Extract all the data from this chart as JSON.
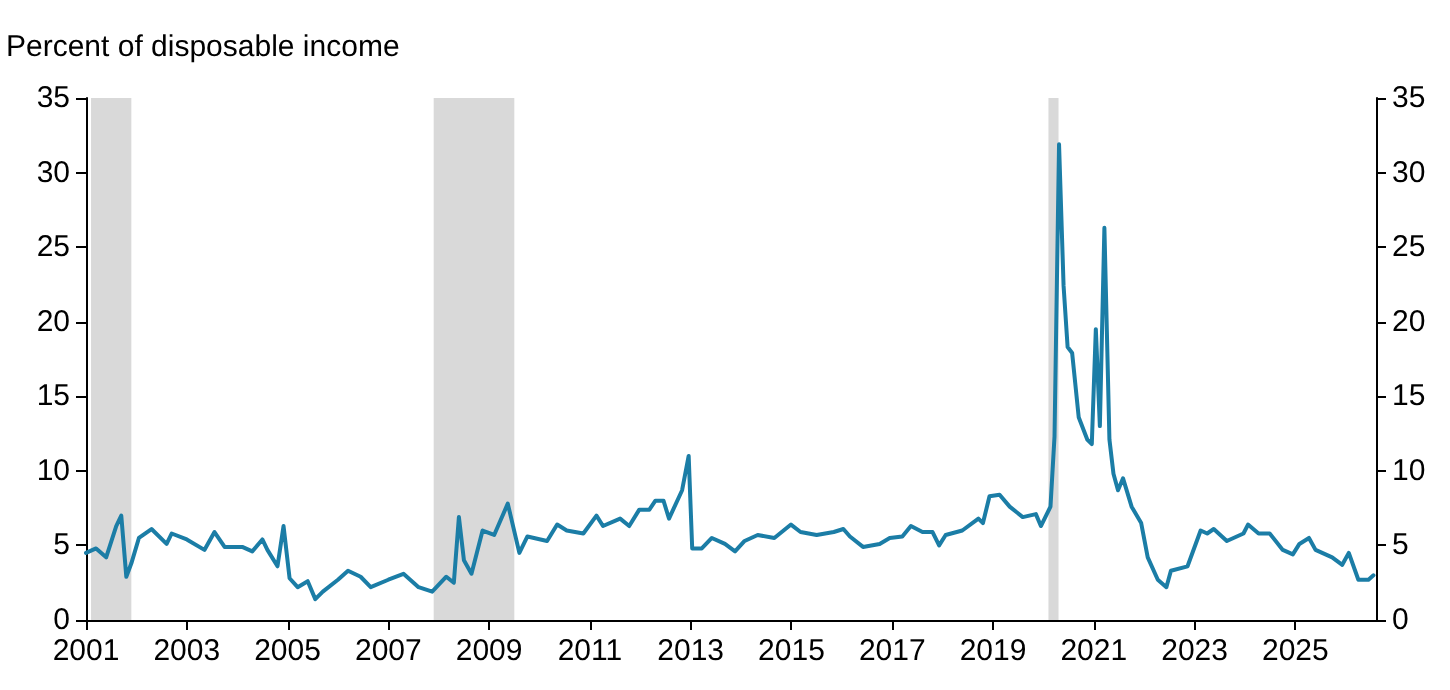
{
  "chart_data": {
    "type": "line",
    "ylabel": "Percent of disposable income",
    "xlim": [
      2001,
      2026.6
    ],
    "xticks": [
      2001,
      2003,
      2005,
      2007,
      2009,
      2011,
      2013,
      2015,
      2017,
      2019,
      2021,
      2023,
      2025
    ],
    "ylim": [
      0,
      35
    ],
    "yticks": [
      0,
      5,
      10,
      15,
      20,
      25,
      30,
      35
    ],
    "y2lim": [
      0,
      35
    ],
    "y2ticks": [
      0,
      5,
      10,
      15,
      20,
      25,
      30,
      35
    ],
    "grid": false,
    "marker": "none",
    "line_style": "solid",
    "bands": [
      {
        "axis": "x",
        "from": 2001.1,
        "to": 2001.9,
        "color": "#d9d9d9"
      },
      {
        "axis": "x",
        "from": 2007.9,
        "to": 2009.5,
        "color": "#d9d9d9"
      },
      {
        "axis": "x",
        "from": 2020.1,
        "to": 2020.3,
        "color": "#d9d9d9"
      }
    ],
    "series": [
      {
        "color": "#1b7da6",
        "x": [
          2001.0,
          2001.2,
          2001.4,
          2001.6,
          2001.7,
          2001.8,
          2001.9,
          2002.05,
          2002.3,
          2002.6,
          2002.7,
          2003.0,
          2003.35,
          2003.55,
          2003.75,
          2004.1,
          2004.3,
          2004.5,
          2004.6,
          2004.8,
          2004.92,
          2005.04,
          2005.2,
          2005.4,
          2005.55,
          2005.7,
          2006.0,
          2006.2,
          2006.45,
          2006.65,
          2007.0,
          2007.3,
          2007.6,
          2007.87,
          2008.15,
          2008.3,
          2008.4,
          2008.5,
          2008.65,
          2008.87,
          2009.1,
          2009.37,
          2009.6,
          2009.76,
          2010.15,
          2010.35,
          2010.54,
          2010.87,
          2011.13,
          2011.26,
          2011.6,
          2011.78,
          2011.98,
          2012.18,
          2012.3,
          2012.46,
          2012.57,
          2012.83,
          2012.96,
          2013.03,
          2013.22,
          2013.42,
          2013.68,
          2013.88,
          2014.07,
          2014.33,
          2014.66,
          2014.99,
          2015.18,
          2015.5,
          2015.84,
          2016.03,
          2016.16,
          2016.42,
          2016.75,
          2016.95,
          2017.2,
          2017.37,
          2017.6,
          2017.8,
          2017.93,
          2018.06,
          2018.39,
          2018.71,
          2018.8,
          2018.93,
          2019.13,
          2019.33,
          2019.59,
          2019.85,
          2019.95,
          2020.14,
          2020.22,
          2020.31,
          2020.4,
          2020.48,
          2020.57,
          2020.7,
          2020.87,
          2020.96,
          2021.04,
          2021.12,
          2021.21,
          2021.31,
          2021.39,
          2021.48,
          2021.58,
          2021.75,
          2021.94,
          2022.07,
          2022.27,
          2022.44,
          2022.53,
          2022.86,
          2023.12,
          2023.25,
          2023.38,
          2023.64,
          2023.97,
          2024.06,
          2024.27,
          2024.49,
          2024.75,
          2024.95,
          2025.08,
          2025.27,
          2025.4,
          2025.73,
          2025.93,
          2026.06,
          2026.25,
          2026.45,
          2026.55
        ],
        "values": [
          4.5,
          4.8,
          4.2,
          6.3,
          7.0,
          2.9,
          3.8,
          5.5,
          6.1,
          5.1,
          5.8,
          5.4,
          4.7,
          5.9,
          4.9,
          4.9,
          4.6,
          5.4,
          4.7,
          3.6,
          6.3,
          2.8,
          2.2,
          2.6,
          1.4,
          1.9,
          2.7,
          3.3,
          2.9,
          2.2,
          2.7,
          3.1,
          2.2,
          1.9,
          2.9,
          2.5,
          6.9,
          4.0,
          3.1,
          6.0,
          5.7,
          7.8,
          4.5,
          5.6,
          5.3,
          6.4,
          6.0,
          5.8,
          7.0,
          6.3,
          6.8,
          6.3,
          7.4,
          7.4,
          8.0,
          8.0,
          6.8,
          8.7,
          11.0,
          4.8,
          4.8,
          5.5,
          5.1,
          4.6,
          5.3,
          5.7,
          5.5,
          6.4,
          5.9,
          5.7,
          5.9,
          6.1,
          5.6,
          4.9,
          5.1,
          5.5,
          5.6,
          6.3,
          5.9,
          5.9,
          5.0,
          5.7,
          6.0,
          6.8,
          6.5,
          8.3,
          8.4,
          7.6,
          6.9,
          7.1,
          6.3,
          7.6,
          12.3,
          31.9,
          22.4,
          18.3,
          17.9,
          13.6,
          12.1,
          11.8,
          19.5,
          13.0,
          26.3,
          12.1,
          9.8,
          8.7,
          9.5,
          7.6,
          6.5,
          4.2,
          2.7,
          2.2,
          3.3,
          3.6,
          6.0,
          5.8,
          6.1,
          5.3,
          5.8,
          6.4,
          5.8,
          5.8,
          4.7,
          4.4,
          5.1,
          5.5,
          4.7,
          4.2,
          3.7,
          4.5,
          2.7,
          2.7,
          3.0
        ]
      }
    ]
  }
}
